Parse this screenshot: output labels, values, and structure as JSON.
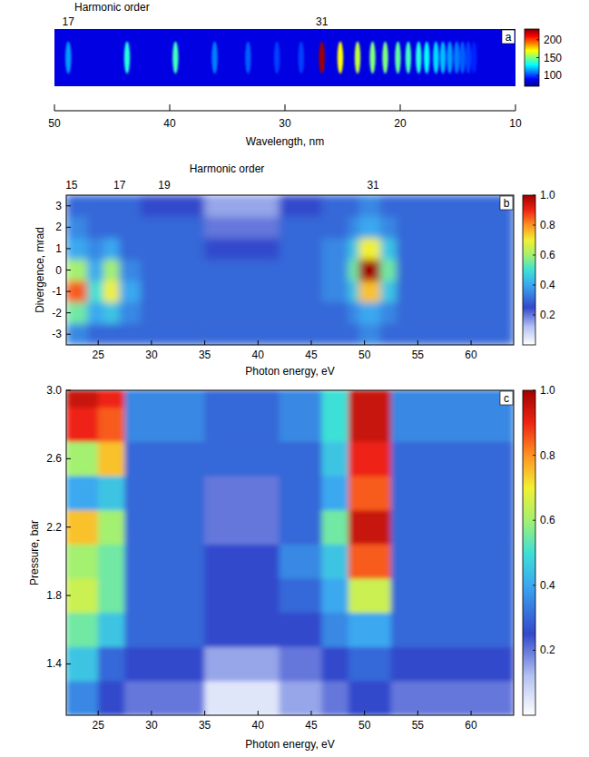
{
  "chart_data": [
    {
      "type": "spectrum_image",
      "panel": "a",
      "top_axis": {
        "label": "Harmonic order",
        "ticks": [
          {
            "value": 48.8,
            "label": "17"
          },
          {
            "value": 26.8,
            "label": "31"
          }
        ]
      },
      "x_label": "Wavelength, nm",
      "xlim": [
        50,
        10
      ],
      "xticks": [
        50,
        40,
        30,
        20,
        10
      ],
      "x": [
        48.8,
        43.7,
        39.5,
        36.1,
        33.2,
        30.7,
        28.6,
        26.8,
        25.2,
        23.7,
        22.4,
        21.3,
        20.2,
        19.3,
        18.4,
        17.7,
        16.9,
        16.3,
        15.7,
        15.1,
        14.6,
        14.1,
        13.6
      ],
      "values": [
        115,
        135,
        140,
        110,
        105,
        100,
        100,
        225,
        170,
        160,
        150,
        150,
        145,
        140,
        135,
        130,
        125,
        120,
        115,
        110,
        105,
        100,
        95
      ],
      "background": 85,
      "colorbar": {
        "lim": [
          70,
          230
        ],
        "ticks": [
          100,
          150,
          200
        ]
      }
    },
    {
      "type": "heatmap",
      "panel": "b",
      "top_axis": {
        "label": "Harmonic order",
        "ticks": [
          {
            "value": 22.5,
            "label": "15"
          },
          {
            "value": 27.0,
            "label": "17"
          },
          {
            "value": 31.2,
            "label": "19"
          },
          {
            "value": 50.8,
            "label": "31"
          }
        ]
      },
      "x_label": "Photon energy, eV",
      "y_label": "Divergence, mrad",
      "xlim": [
        22,
        64
      ],
      "xticks": [
        25,
        30,
        35,
        40,
        45,
        50,
        55,
        60
      ],
      "ylim": [
        -3.5,
        3.5
      ],
      "yticks": [
        -3,
        -2,
        -1,
        0,
        1,
        2,
        3
      ],
      "x_edges": [
        22,
        24,
        25.5,
        27,
        29,
        35,
        42,
        46,
        48.5,
        49.5,
        51.5,
        53,
        64
      ],
      "y_edges": [
        -3.5,
        -2.5,
        -1.5,
        -0.5,
        0.5,
        1.5,
        2.5,
        3.5
      ],
      "cells": [
        [
          0.35,
          0.3,
          0.3,
          0.3,
          0.3,
          0.3,
          0.3,
          0.3,
          0.3,
          0.35,
          0.3,
          0.3
        ],
        [
          0.55,
          0.4,
          0.45,
          0.35,
          0.3,
          0.3,
          0.3,
          0.3,
          0.35,
          0.4,
          0.35,
          0.3
        ],
        [
          0.85,
          0.5,
          0.7,
          0.4,
          0.3,
          0.3,
          0.3,
          0.35,
          0.45,
          0.75,
          0.45,
          0.3
        ],
        [
          0.6,
          0.4,
          0.6,
          0.35,
          0.3,
          0.3,
          0.3,
          0.35,
          0.55,
          1.0,
          0.55,
          0.3
        ],
        [
          0.4,
          0.35,
          0.4,
          0.3,
          0.3,
          0.25,
          0.3,
          0.35,
          0.45,
          0.7,
          0.45,
          0.3
        ],
        [
          0.35,
          0.3,
          0.3,
          0.3,
          0.3,
          0.2,
          0.3,
          0.3,
          0.35,
          0.4,
          0.35,
          0.3
        ],
        [
          0.3,
          0.3,
          0.3,
          0.3,
          0.25,
          0.15,
          0.25,
          0.3,
          0.3,
          0.35,
          0.3,
          0.3
        ]
      ],
      "colorbar": {
        "lim": [
          0,
          1
        ],
        "ticks": [
          0.2,
          0.4,
          0.6,
          0.8,
          {
            "value": 1,
            "label": "1.0"
          }
        ]
      }
    },
    {
      "type": "heatmap",
      "panel": "c",
      "x_label": "Photon energy, eV",
      "y_label": "Pressure, bar",
      "xlim": [
        22,
        64
      ],
      "xticks": [
        25,
        30,
        35,
        40,
        45,
        50,
        55,
        60
      ],
      "ylim": [
        1.1,
        3.0
      ],
      "yticks": [
        1.4,
        1.8,
        2.2,
        2.6,
        {
          "value": 3,
          "label": "3.0"
        }
      ],
      "x_edges": [
        22,
        25,
        27.5,
        35,
        42,
        46,
        48.5,
        52.5,
        64
      ],
      "y_edges": [
        1.1,
        1.3,
        1.5,
        1.7,
        1.9,
        2.1,
        2.3,
        2.5,
        2.7,
        2.9,
        3.0
      ],
      "cells": [
        [
          0.35,
          0.25,
          0.2,
          0.05,
          0.15,
          0.2,
          0.25,
          0.2
        ],
        [
          0.45,
          0.3,
          0.25,
          0.15,
          0.2,
          0.25,
          0.3,
          0.25
        ],
        [
          0.55,
          0.45,
          0.3,
          0.25,
          0.25,
          0.35,
          0.4,
          0.3
        ],
        [
          0.65,
          0.55,
          0.3,
          0.25,
          0.3,
          0.4,
          0.65,
          0.3
        ],
        [
          0.6,
          0.55,
          0.3,
          0.25,
          0.35,
          0.45,
          0.85,
          0.3
        ],
        [
          0.75,
          0.6,
          0.3,
          0.2,
          0.3,
          0.55,
          0.95,
          0.3
        ],
        [
          0.4,
          0.45,
          0.3,
          0.2,
          0.3,
          0.4,
          0.85,
          0.3
        ],
        [
          0.6,
          0.75,
          0.3,
          0.3,
          0.3,
          0.45,
          0.9,
          0.3
        ],
        [
          0.9,
          0.85,
          0.35,
          0.3,
          0.35,
          0.5,
          0.95,
          0.35
        ],
        [
          0.95,
          0.9,
          0.35,
          0.3,
          0.35,
          0.5,
          0.95,
          0.35
        ]
      ],
      "colorbar": {
        "lim": [
          0,
          1
        ],
        "ticks": [
          0.2,
          0.4,
          0.6,
          0.8,
          {
            "value": 1,
            "label": "1.0"
          }
        ]
      }
    }
  ]
}
